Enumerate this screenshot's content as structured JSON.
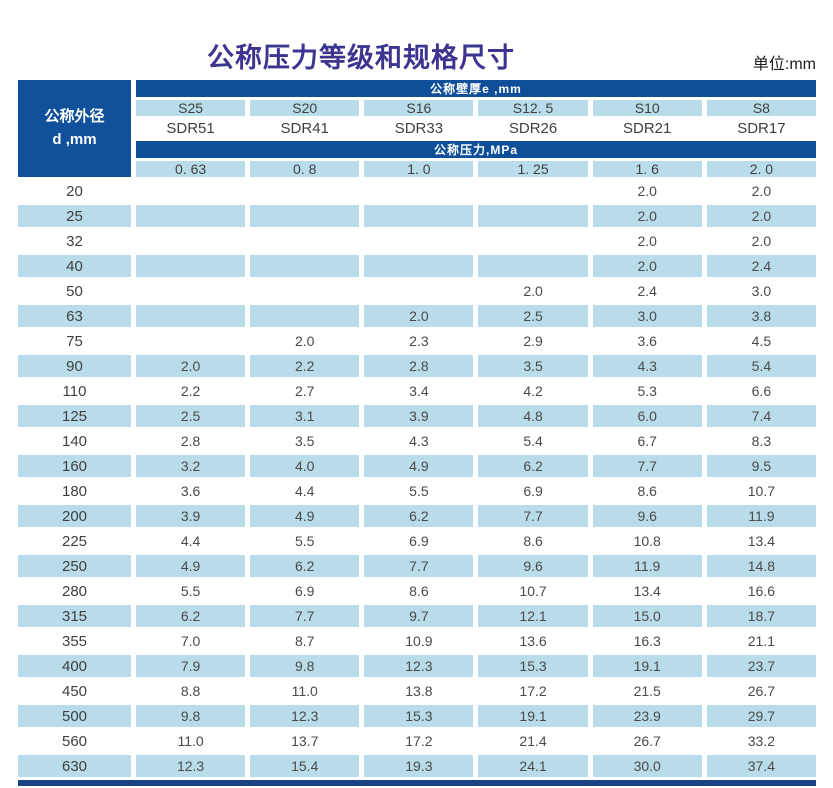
{
  "page": {
    "title": "公称压力等级和规格尺寸",
    "unit_label": "单位:mm"
  },
  "colors": {
    "dark_blue_band": "#0f4f99",
    "light_blue_cell": "#b9dcea",
    "title_purple": "#3c3590",
    "bottom_bar": "#1a4284"
  },
  "table": {
    "row_header": "公称外径\nd ,mm",
    "wall_thickness_band": "公称壁厚e ,mm",
    "pressure_band": "公称压力,MPa",
    "series_labels": [
      "S25",
      "S20",
      "S16",
      "S12. 5",
      "S10",
      "S8"
    ],
    "sdr_labels": [
      "SDR51",
      "SDR41",
      "SDR33",
      "SDR26",
      "SDR21",
      "SDR17"
    ],
    "pressure_values": [
      "0. 63",
      "0. 8",
      "1. 0",
      "1. 25",
      "1. 6",
      "2. 0"
    ],
    "rows": [
      {
        "d": "20",
        "values": [
          "",
          "",
          "",
          "",
          "2.0",
          "2.0"
        ]
      },
      {
        "d": "25",
        "values": [
          "",
          "",
          "",
          "",
          "2.0",
          "2.0"
        ]
      },
      {
        "d": "32",
        "values": [
          "",
          "",
          "",
          "",
          "2.0",
          "2.0"
        ]
      },
      {
        "d": "40",
        "values": [
          "",
          "",
          "",
          "",
          "2.0",
          "2.4"
        ]
      },
      {
        "d": "50",
        "values": [
          "",
          "",
          "",
          "2.0",
          "2.4",
          "3.0"
        ]
      },
      {
        "d": "63",
        "values": [
          "",
          "",
          "2.0",
          "2.5",
          "3.0",
          "3.8"
        ]
      },
      {
        "d": "75",
        "values": [
          "",
          "2.0",
          "2.3",
          "2.9",
          "3.6",
          "4.5"
        ]
      },
      {
        "d": "90",
        "values": [
          "2.0",
          "2.2",
          "2.8",
          "3.5",
          "4.3",
          "5.4"
        ]
      },
      {
        "d": "110",
        "values": [
          "2.2",
          "2.7",
          "3.4",
          "4.2",
          "5.3",
          "6.6"
        ]
      },
      {
        "d": "125",
        "values": [
          "2.5",
          "3.1",
          "3.9",
          "4.8",
          "6.0",
          "7.4"
        ]
      },
      {
        "d": "140",
        "values": [
          "2.8",
          "3.5",
          "4.3",
          "5.4",
          "6.7",
          "8.3"
        ]
      },
      {
        "d": "160",
        "values": [
          "3.2",
          "4.0",
          "4.9",
          "6.2",
          "7.7",
          "9.5"
        ]
      },
      {
        "d": "180",
        "values": [
          "3.6",
          "4.4",
          "5.5",
          "6.9",
          "8.6",
          "10.7"
        ]
      },
      {
        "d": "200",
        "values": [
          "3.9",
          "4.9",
          "6.2",
          "7.7",
          "9.6",
          "11.9"
        ]
      },
      {
        "d": "225",
        "values": [
          "4.4",
          "5.5",
          "6.9",
          "8.6",
          "10.8",
          "13.4"
        ]
      },
      {
        "d": "250",
        "values": [
          "4.9",
          "6.2",
          "7.7",
          "9.6",
          "11.9",
          "14.8"
        ]
      },
      {
        "d": "280",
        "values": [
          "5.5",
          "6.9",
          "8.6",
          "10.7",
          "13.4",
          "16.6"
        ]
      },
      {
        "d": "315",
        "values": [
          "6.2",
          "7.7",
          "9.7",
          "12.1",
          "15.0",
          "18.7"
        ]
      },
      {
        "d": "355",
        "values": [
          "7.0",
          "8.7",
          "10.9",
          "13.6",
          "16.3",
          "21.1"
        ]
      },
      {
        "d": "400",
        "values": [
          "7.9",
          "9.8",
          "12.3",
          "15.3",
          "19.1",
          "23.7"
        ]
      },
      {
        "d": "450",
        "values": [
          "8.8",
          "11.0",
          "13.8",
          "17.2",
          "21.5",
          "26.7"
        ]
      },
      {
        "d": "500",
        "values": [
          "9.8",
          "12.3",
          "15.3",
          "19.1",
          "23.9",
          "29.7"
        ]
      },
      {
        "d": "560",
        "values": [
          "11.0",
          "13.7",
          "17.2",
          "21.4",
          "26.7",
          "33.2"
        ]
      },
      {
        "d": "630",
        "values": [
          "12.3",
          "15.4",
          "19.3",
          "24.1",
          "30.0",
          "37.4"
        ]
      }
    ]
  }
}
